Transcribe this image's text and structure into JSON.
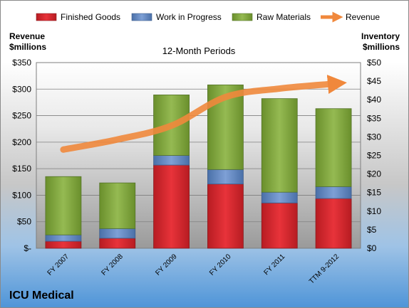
{
  "chart_data": {
    "type": "bar",
    "subtitle": "12-Month Periods",
    "company": "ICU Medical",
    "left_axis": {
      "label_line1": "Revenue",
      "label_line2": "$millions",
      "ylim": [
        0,
        350
      ],
      "ticks": [
        "$-",
        "$50",
        "$100",
        "$150",
        "$200",
        "$250",
        "$300",
        "$350"
      ]
    },
    "right_axis": {
      "label_line1": "Inventory",
      "label_line2": "$millions",
      "ylim": [
        0,
        50
      ],
      "ticks": [
        "$0",
        "$5",
        "$10",
        "$15",
        "$20",
        "$25",
        "$30",
        "$35",
        "$40",
        "$45",
        "$50"
      ]
    },
    "categories": [
      "FY 2007",
      "FY 2008",
      "FY 2009",
      "FY 2010",
      "FY 2011",
      "TTM 9-2012"
    ],
    "series": [
      {
        "name": "Finished Goods",
        "axis": "right",
        "type": "stacked-bar",
        "color": "#d9262e",
        "values": [
          1.9,
          2.7,
          22.4,
          17.3,
          12.2,
          13.4
        ]
      },
      {
        "name": "Work in Progress",
        "axis": "right",
        "type": "stacked-bar",
        "color": "#5b86c4",
        "values": [
          1.7,
          2.6,
          2.6,
          3.9,
          2.9,
          3.2
        ]
      },
      {
        "name": "Raw Materials",
        "axis": "right",
        "type": "stacked-bar",
        "color": "#7fa63b",
        "values": [
          15.7,
          12.3,
          16.3,
          22.8,
          25.2,
          21.0
        ]
      },
      {
        "name": "Revenue",
        "axis": "left",
        "type": "line",
        "color": "#f0883c",
        "values": [
          186,
          205,
          231,
          285,
          301,
          310
        ]
      }
    ],
    "legend_position": "top",
    "grid": true
  }
}
